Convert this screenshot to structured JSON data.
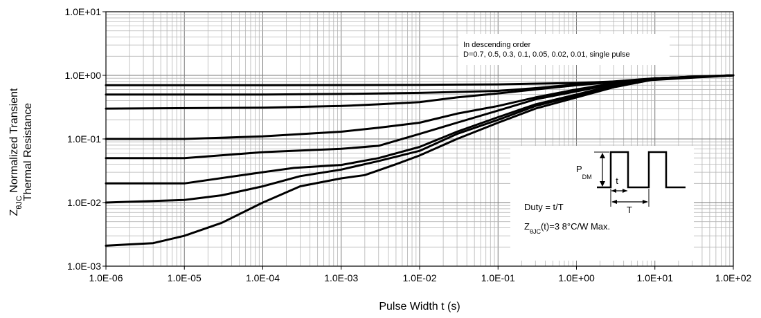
{
  "chart_data": {
    "type": "line",
    "x_scale": "log",
    "y_scale": "log",
    "xlim": [
      1e-06,
      100
    ],
    "ylim": [
      0.001,
      10
    ],
    "grid": true,
    "xlabel": "Pulse Width t (s)",
    "ylabel_line1_prefix": "Z",
    "ylabel_line1_sub": "θJC",
    "ylabel_line1_rest": " Normalized Transient",
    "ylabel_line2": "Thermal Resistance",
    "x_tick_labels": [
      "1.0E-06",
      "1.0E-05",
      "1.0E-04",
      "1.0E-03",
      "1.0E-02",
      "1.0E-01",
      "1.0E+00",
      "1.0E+01",
      "1.0E+02"
    ],
    "y_tick_labels": [
      "1.0E+01",
      "1.0E+00",
      "1.0E-01",
      "1.0E-02",
      "1.0E-03"
    ],
    "annotation_line1": "In descending order",
    "annotation_line2": "D=0.7, 0.5, 0.3, 0.1, 0.05, 0.02, 0.01, single pulse",
    "series": [
      {
        "values": [
          [
            1e-06,
            0.7
          ],
          [
            0.0001,
            0.7
          ],
          [
            0.01,
            0.71
          ],
          [
            0.1,
            0.72
          ],
          [
            1,
            0.76
          ],
          [
            10,
            0.85
          ],
          [
            100,
            1.0
          ]
        ]
      },
      {
        "values": [
          [
            1e-06,
            0.5
          ],
          [
            0.0001,
            0.5
          ],
          [
            0.001,
            0.51
          ],
          [
            0.01,
            0.53
          ],
          [
            0.1,
            0.57
          ],
          [
            0.3,
            0.63
          ],
          [
            1,
            0.72
          ],
          [
            10,
            0.9
          ],
          [
            100,
            1.0
          ]
        ]
      },
      {
        "values": [
          [
            1e-06,
            0.3
          ],
          [
            0.0001,
            0.31
          ],
          [
            0.001,
            0.33
          ],
          [
            0.003,
            0.35
          ],
          [
            0.01,
            0.38
          ],
          [
            0.03,
            0.45
          ],
          [
            0.1,
            0.52
          ],
          [
            0.3,
            0.6
          ],
          [
            1,
            0.7
          ],
          [
            10,
            0.88
          ],
          [
            100,
            1.0
          ]
        ]
      },
      {
        "values": [
          [
            1e-06,
            0.1
          ],
          [
            1e-05,
            0.1
          ],
          [
            0.0001,
            0.11
          ],
          [
            0.001,
            0.13
          ],
          [
            0.003,
            0.15
          ],
          [
            0.01,
            0.18
          ],
          [
            0.03,
            0.25
          ],
          [
            0.1,
            0.33
          ],
          [
            0.3,
            0.45
          ],
          [
            1,
            0.6
          ],
          [
            3,
            0.75
          ],
          [
            10,
            0.9
          ],
          [
            100,
            1.0
          ]
        ]
      },
      {
        "values": [
          [
            1e-06,
            0.05
          ],
          [
            1e-05,
            0.05
          ],
          [
            0.0001,
            0.062
          ],
          [
            0.001,
            0.07
          ],
          [
            0.003,
            0.078
          ],
          [
            0.01,
            0.12
          ],
          [
            0.03,
            0.18
          ],
          [
            0.1,
            0.28
          ],
          [
            0.3,
            0.42
          ],
          [
            1,
            0.56
          ],
          [
            3,
            0.73
          ],
          [
            10,
            0.9
          ],
          [
            100,
            1.0
          ]
        ]
      },
      {
        "values": [
          [
            1e-06,
            0.02
          ],
          [
            1e-05,
            0.02
          ],
          [
            0.0001,
            0.03
          ],
          [
            0.00025,
            0.035
          ],
          [
            0.001,
            0.039
          ],
          [
            0.003,
            0.05
          ],
          [
            0.01,
            0.075
          ],
          [
            0.03,
            0.13
          ],
          [
            0.1,
            0.22
          ],
          [
            0.3,
            0.35
          ],
          [
            1,
            0.5
          ],
          [
            3,
            0.7
          ],
          [
            10,
            0.88
          ],
          [
            100,
            1.0
          ]
        ]
      },
      {
        "values": [
          [
            1e-06,
            0.01
          ],
          [
            1e-05,
            0.011
          ],
          [
            3e-05,
            0.013
          ],
          [
            0.0001,
            0.018
          ],
          [
            0.0003,
            0.026
          ],
          [
            0.001,
            0.033
          ],
          [
            0.003,
            0.045
          ],
          [
            0.01,
            0.065
          ],
          [
            0.03,
            0.12
          ],
          [
            0.1,
            0.2
          ],
          [
            0.3,
            0.33
          ],
          [
            1,
            0.48
          ],
          [
            3,
            0.68
          ],
          [
            10,
            0.88
          ],
          [
            100,
            1.0
          ]
        ]
      },
      {
        "values": [
          [
            1e-06,
            0.0021
          ],
          [
            2e-06,
            0.0022
          ],
          [
            4e-06,
            0.0023
          ],
          [
            1e-05,
            0.003
          ],
          [
            3e-05,
            0.0048
          ],
          [
            0.0001,
            0.01
          ],
          [
            0.0003,
            0.018
          ],
          [
            0.001,
            0.024
          ],
          [
            0.002,
            0.027
          ],
          [
            0.005,
            0.04
          ],
          [
            0.01,
            0.055
          ],
          [
            0.03,
            0.1
          ],
          [
            0.1,
            0.18
          ],
          [
            0.3,
            0.3
          ],
          [
            1,
            0.45
          ],
          [
            3,
            0.65
          ],
          [
            10,
            0.87
          ],
          [
            30,
            0.96
          ],
          [
            100,
            1.0
          ]
        ]
      }
    ]
  },
  "inset": {
    "pdm_main": "P",
    "pdm_sub": "DM",
    "t_label": "t",
    "T_label": "T",
    "duty_text": "Duty = t/T",
    "z_main": "Z",
    "z_sub": "θJC",
    "z_rest": "(t)=3 8°C/W Max."
  }
}
